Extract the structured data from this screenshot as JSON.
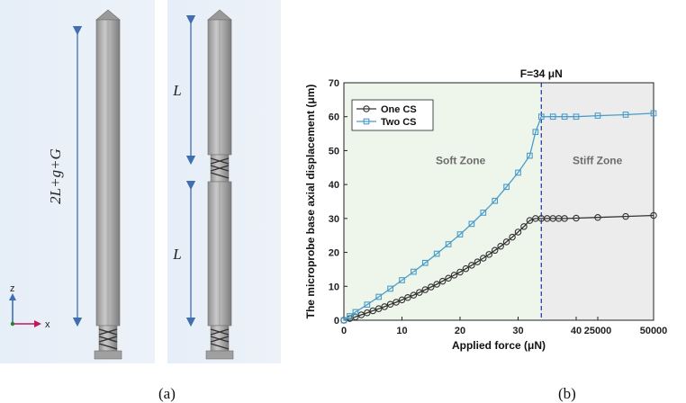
{
  "figure": {
    "caption_a": "(a)",
    "caption_b": "(b)"
  },
  "panel_a": {
    "dim_total": "2L+g+G",
    "dim_upper": "L",
    "dim_lower": "L",
    "axis_z": "z",
    "axis_x": "x",
    "colors": {
      "background": "#e9f0f7",
      "probe": "#a9a9a9",
      "arrow": "#3f6fb0"
    }
  },
  "chart_data": {
    "type": "line",
    "title": "F=34 μN",
    "xlabel": "Applied force (μN)",
    "ylabel": "The microprobe base axial displacement (μm)",
    "ylim": [
      0,
      70
    ],
    "yticks": [
      0,
      10,
      20,
      30,
      40,
      50,
      60,
      70
    ],
    "xticks": [
      {
        "label": "0",
        "value": 0
      },
      {
        "label": "10",
        "value": 10
      },
      {
        "label": "20",
        "value": 20
      },
      {
        "label": "30",
        "value": 30
      },
      {
        "label": "40",
        "value": 40
      },
      {
        "label": "25000",
        "value": 25000
      },
      {
        "label": "50000",
        "value": 50000
      }
    ],
    "threshold_x": 34,
    "zones": [
      {
        "label": "Soft Zone",
        "color": "#eef5ea"
      },
      {
        "label": "Stiff Zone",
        "color": "#ececec"
      }
    ],
    "legend_position": "top-left",
    "grid": false,
    "series": [
      {
        "name": "One CS",
        "color": "#333333",
        "marker": "circle",
        "points": [
          [
            0,
            0
          ],
          [
            1,
            0.5
          ],
          [
            2,
            1
          ],
          [
            3,
            1.6
          ],
          [
            4,
            2.2
          ],
          [
            5,
            2.8
          ],
          [
            6,
            3.4
          ],
          [
            7,
            4.0
          ],
          [
            8,
            4.7
          ],
          [
            9,
            5.3
          ],
          [
            10,
            6.0
          ],
          [
            11,
            6.7
          ],
          [
            12,
            7.4
          ],
          [
            13,
            8.2
          ],
          [
            14,
            9.0
          ],
          [
            15,
            9.8
          ],
          [
            16,
            10.6
          ],
          [
            17,
            11.5
          ],
          [
            18,
            12.4
          ],
          [
            19,
            13.3
          ],
          [
            20,
            14.2
          ],
          [
            21,
            15.2
          ],
          [
            22,
            16.2
          ],
          [
            23,
            17.2
          ],
          [
            24,
            18.3
          ],
          [
            25,
            19.4
          ],
          [
            26,
            20.6
          ],
          [
            27,
            21.8
          ],
          [
            28,
            23.1
          ],
          [
            29,
            24.5
          ],
          [
            30,
            26.0
          ],
          [
            31,
            27.6
          ],
          [
            32,
            29.4
          ],
          [
            33,
            30.0
          ],
          [
            34,
            30.0
          ],
          [
            35,
            30.0
          ],
          [
            36,
            30.0
          ],
          [
            37,
            30.0
          ],
          [
            38,
            30.0
          ],
          [
            40,
            30.1
          ],
          [
            25000,
            30.3
          ],
          [
            37500,
            30.6
          ],
          [
            50000,
            30.9
          ]
        ]
      },
      {
        "name": "Two CS",
        "color": "#4a9cc9",
        "marker": "square",
        "points": [
          [
            0,
            0
          ],
          [
            1,
            1.2
          ],
          [
            2,
            2.4
          ],
          [
            4,
            4.6
          ],
          [
            6,
            6.9
          ],
          [
            8,
            9.3
          ],
          [
            10,
            11.8
          ],
          [
            12,
            14.3
          ],
          [
            14,
            16.9
          ],
          [
            16,
            19.6
          ],
          [
            18,
            22.4
          ],
          [
            20,
            25.3
          ],
          [
            22,
            28.4
          ],
          [
            24,
            31.7
          ],
          [
            26,
            35.2
          ],
          [
            28,
            39.3
          ],
          [
            30,
            43.5
          ],
          [
            32,
            48.5
          ],
          [
            33,
            55.5
          ],
          [
            34,
            60.0
          ],
          [
            36,
            60.0
          ],
          [
            38,
            60.0
          ],
          [
            40,
            60.0
          ],
          [
            25000,
            60.3
          ],
          [
            37500,
            60.6
          ],
          [
            50000,
            61.0
          ]
        ]
      }
    ]
  }
}
